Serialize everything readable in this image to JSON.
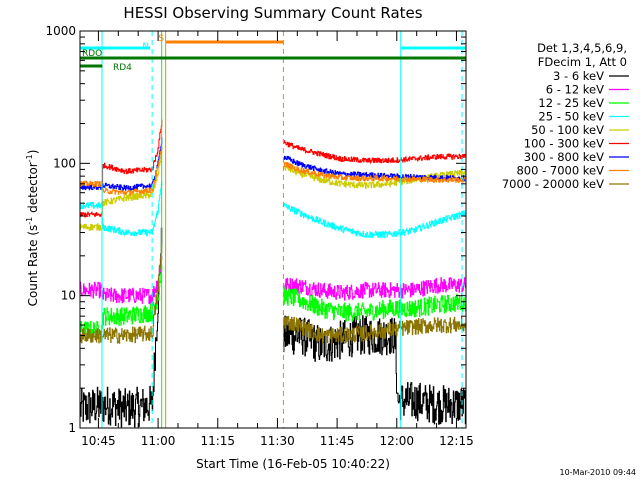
{
  "chart_data": {
    "type": "line",
    "title": "HESSI Observing Summary Count Rates",
    "xlabel": "Start Time (16-Feb-05 10:40:22)",
    "ylabel_main": "Count Rate (s",
    "ylabel_sup1": "-1",
    "ylabel_mid": " detector",
    "ylabel_sup2": "-1",
    "ylabel_end": ")",
    "yscale": "log",
    "ylim": [
      1,
      1000
    ],
    "xlim_minutes": [
      40.37,
      137.4
    ],
    "y_ticks": [
      {
        "v": 1,
        "label": "1"
      },
      {
        "v": 10,
        "label": "10"
      },
      {
        "v": 100,
        "label": "100"
      },
      {
        "v": 1000,
        "label": "1000"
      }
    ],
    "x_ticks": [
      {
        "m": 45,
        "label": "10:45"
      },
      {
        "m": 60,
        "label": "11:00"
      },
      {
        "m": 75,
        "label": "11:15"
      },
      {
        "m": 90,
        "label": "11:30"
      },
      {
        "m": 105,
        "label": "11:45"
      },
      {
        "m": 120,
        "label": "12:00"
      },
      {
        "m": 135,
        "label": "12:15"
      }
    ],
    "legend": {
      "header1": "Det 1,3,4,5,6,9,",
      "header2": "FDecim 1, Att 0",
      "placement": "right"
    },
    "gap_minutes": [
      61.6,
      91.5
    ],
    "series": [
      {
        "name": "3 - 6 keV",
        "color": "#000000",
        "noise": 0.15,
        "seg1": [
          [
            40.4,
            1.4
          ],
          [
            47.0,
            1.5
          ],
          [
            52.0,
            1.4
          ],
          [
            58.5,
            1.5
          ],
          [
            60.0,
            10
          ],
          [
            61.0,
            30
          ]
        ],
        "seg2": [
          [
            91.5,
            5
          ],
          [
            96,
            5
          ],
          [
            101,
            4.2
          ],
          [
            105,
            4.5
          ],
          [
            110,
            5
          ],
          [
            115,
            5
          ],
          [
            119.5,
            5
          ],
          [
            120.2,
            1.6
          ],
          [
            125,
            1.6
          ],
          [
            130,
            1.5
          ],
          [
            137.4,
            1.5
          ]
        ]
      },
      {
        "name": "6 - 12 keV",
        "color": "#ff00ff",
        "noise": 0.06,
        "seg1": [
          [
            40.4,
            11
          ],
          [
            45.8,
            11
          ],
          [
            46.0,
            10
          ],
          [
            52.0,
            10
          ],
          [
            58.5,
            10
          ],
          [
            60.0,
            13
          ],
          [
            61.0,
            20
          ]
        ],
        "seg2": [
          [
            91.5,
            12
          ],
          [
            95,
            12
          ],
          [
            101,
            11
          ],
          [
            106,
            10.5
          ],
          [
            112,
            11
          ],
          [
            118,
            11
          ],
          [
            124,
            11
          ],
          [
            130,
            12
          ],
          [
            137.4,
            12
          ]
        ]
      },
      {
        "name": "12 - 25 keV",
        "color": "#00ff00",
        "noise": 0.07,
        "seg1": [
          [
            40.4,
            5.5
          ],
          [
            45.8,
            5.5
          ],
          [
            46.0,
            7
          ],
          [
            52.0,
            7
          ],
          [
            58.5,
            7.5
          ],
          [
            60.0,
            10
          ],
          [
            61.0,
            18
          ]
        ],
        "seg2": [
          [
            91.5,
            10
          ],
          [
            95,
            9.5
          ],
          [
            101,
            8
          ],
          [
            106,
            7.5
          ],
          [
            112,
            7.5
          ],
          [
            118,
            8
          ],
          [
            124,
            8
          ],
          [
            130,
            8.5
          ],
          [
            137.4,
            9
          ]
        ]
      },
      {
        "name": "25 - 50 keV",
        "color": "#00ffff",
        "noise": 0.025,
        "seg1": [
          [
            40.4,
            48
          ],
          [
            45.8,
            48
          ],
          [
            46.0,
            33
          ],
          [
            52.0,
            30
          ],
          [
            58.5,
            30
          ],
          [
            60.0,
            45
          ],
          [
            61.0,
            80
          ]
        ],
        "seg2": [
          [
            91.5,
            48
          ],
          [
            95,
            43
          ],
          [
            101,
            36
          ],
          [
            106,
            32
          ],
          [
            112,
            29
          ],
          [
            118,
            29
          ],
          [
            124,
            31
          ],
          [
            130,
            36
          ],
          [
            137.4,
            42
          ]
        ]
      },
      {
        "name": "50 - 100 keV",
        "color": "#cccc00",
        "noise": 0.025,
        "seg1": [
          [
            40.4,
            33
          ],
          [
            45.8,
            33
          ],
          [
            46.0,
            50
          ],
          [
            52.0,
            55
          ],
          [
            58.5,
            58
          ],
          [
            60.0,
            85
          ],
          [
            61.0,
            130
          ]
        ],
        "seg2": [
          [
            91.5,
            95
          ],
          [
            95,
            85
          ],
          [
            101,
            75
          ],
          [
            106,
            70
          ],
          [
            112,
            68
          ],
          [
            118,
            70
          ],
          [
            124,
            75
          ],
          [
            130,
            80
          ],
          [
            137.4,
            85
          ]
        ]
      },
      {
        "name": "100 - 300 keV",
        "color": "#ff0000",
        "noise": 0.02,
        "seg1": [
          [
            40.4,
            41
          ],
          [
            45.8,
            41
          ],
          [
            46.0,
            97
          ],
          [
            52.0,
            87
          ],
          [
            58.5,
            90
          ],
          [
            60.0,
            130
          ],
          [
            61.0,
            220
          ]
        ],
        "seg2": [
          [
            91.5,
            145
          ],
          [
            95,
            130
          ],
          [
            101,
            117
          ],
          [
            106,
            108
          ],
          [
            112,
            105
          ],
          [
            118,
            105
          ],
          [
            124,
            108
          ],
          [
            130,
            112
          ],
          [
            137.4,
            113
          ]
        ]
      },
      {
        "name": "300 - 800 keV",
        "color": "#0000ff",
        "noise": 0.02,
        "seg1": [
          [
            40.4,
            66
          ],
          [
            45.8,
            66
          ],
          [
            46.0,
            68
          ],
          [
            52.0,
            65
          ],
          [
            58.5,
            68
          ],
          [
            60.0,
            100
          ],
          [
            61.0,
            160
          ]
        ],
        "seg2": [
          [
            91.5,
            112
          ],
          [
            95,
            100
          ],
          [
            101,
            88
          ],
          [
            106,
            83
          ],
          [
            112,
            82
          ],
          [
            118,
            80
          ],
          [
            124,
            79
          ],
          [
            130,
            78
          ],
          [
            137.4,
            77
          ]
        ]
      },
      {
        "name": "800 - 7000 keV",
        "color": "#ff8000",
        "noise": 0.02,
        "seg1": [
          [
            40.4,
            70
          ],
          [
            45.8,
            70
          ],
          [
            46.0,
            62
          ],
          [
            52.0,
            60
          ],
          [
            58.5,
            63
          ],
          [
            60.0,
            95
          ],
          [
            61.0,
            140
          ]
        ],
        "seg2": [
          [
            91.5,
            100
          ],
          [
            95,
            90
          ],
          [
            101,
            82
          ],
          [
            106,
            78
          ],
          [
            112,
            77
          ],
          [
            118,
            77
          ],
          [
            124,
            76
          ],
          [
            130,
            75
          ],
          [
            137.4,
            75
          ]
        ]
      },
      {
        "name": "7000 - 20000 keV",
        "color": "#8b7500",
        "noise": 0.06,
        "seg1": [
          [
            40.4,
            5.0
          ],
          [
            45.8,
            5.0
          ],
          [
            46.0,
            5.0
          ],
          [
            52.0,
            5.0
          ],
          [
            58.5,
            5.2
          ],
          [
            60.0,
            12
          ],
          [
            61.0,
            25
          ]
        ],
        "seg2": [
          [
            91.5,
            6.5
          ],
          [
            95,
            6
          ],
          [
            101,
            5
          ],
          [
            106,
            5
          ],
          [
            112,
            5.2
          ],
          [
            118,
            5.5
          ],
          [
            124,
            5.8
          ],
          [
            130,
            6
          ],
          [
            137.4,
            6
          ]
        ]
      }
    ],
    "flags": [
      {
        "name": "RDO",
        "color": "#007700",
        "row": 1,
        "start": 40.37,
        "end": 137.4
      },
      {
        "name": "RD4",
        "color": "#007700",
        "row": 2,
        "start": 40.37,
        "end": 46.0
      },
      {
        "name": "N",
        "color": "#00ffff",
        "row": 0,
        "start": 40.37,
        "end": 58.0
      },
      {
        "name": "N",
        "color": "#00ffff",
        "row": 0,
        "start": 121.0,
        "end": 137.4
      },
      {
        "name": "S",
        "color": "#ff8000",
        "row": -1,
        "start": 62.0,
        "end": 91.5
      }
    ],
    "vlines": [
      {
        "m": 45.9,
        "color": "#00ffff",
        "style": "solid"
      },
      {
        "m": 58.5,
        "color": "#00ffff",
        "style": "dashed"
      },
      {
        "m": 60.9,
        "color": "#00ff00",
        "style": "solid"
      },
      {
        "m": 61.9,
        "color": "#ff8000",
        "style": "solid"
      },
      {
        "m": 91.5,
        "color": "#ff8000",
        "style": "dashed"
      },
      {
        "m": 121.0,
        "color": "#00ffff",
        "style": "solid"
      },
      {
        "m": 136.4,
        "color": "#00ffff",
        "style": "dashed"
      }
    ],
    "grid": false
  },
  "footer": {
    "timestamp": "10-Mar-2010 09:44"
  }
}
